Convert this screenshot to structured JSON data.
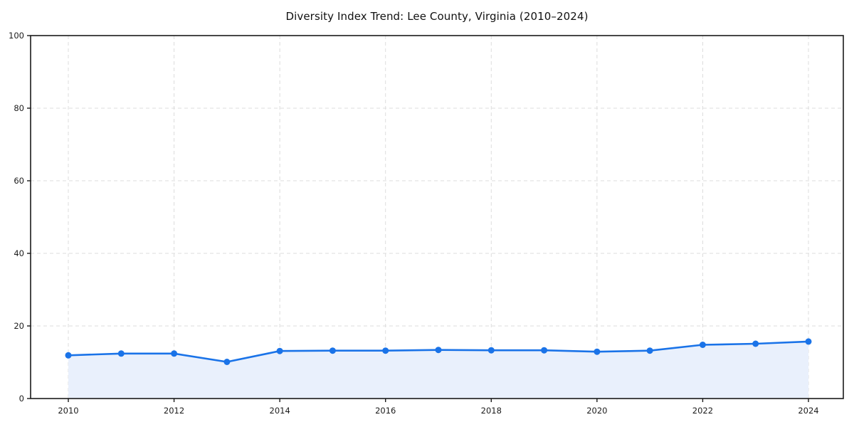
{
  "chart": {
    "colors": {
      "line": "#1a73e8",
      "area_fill": "#e9f0fc",
      "grid": "#dcdcdc",
      "axis": "#1a1a1a",
      "tick_label": "#1c1c1c",
      "title_text": "#111111",
      "background": "#ffffff"
    }
  },
  "chart_data": {
    "type": "area",
    "title": "Diversity Index Trend: Lee County, Virginia (2010–2024)",
    "xlabel": "",
    "ylabel": "",
    "x": [
      2010,
      2011,
      2012,
      2013,
      2014,
      2015,
      2016,
      2017,
      2018,
      2019,
      2020,
      2021,
      2022,
      2023,
      2024
    ],
    "series": [
      {
        "name": "Diversity Index",
        "values": [
          11.9,
          12.4,
          12.4,
          10.1,
          13.1,
          13.2,
          13.2,
          13.4,
          13.3,
          13.3,
          12.9,
          13.2,
          14.8,
          15.1,
          15.7
        ]
      }
    ],
    "ylim": [
      0,
      100
    ],
    "xlim_years": [
      2010,
      2024
    ],
    "xticks": [
      2010,
      2012,
      2014,
      2016,
      2018,
      2020,
      2022,
      2024
    ],
    "yticks": [
      0,
      20,
      40,
      60,
      80,
      100
    ],
    "grid": true,
    "grid_style": "dashed",
    "legend": "none",
    "marker": "circle"
  }
}
